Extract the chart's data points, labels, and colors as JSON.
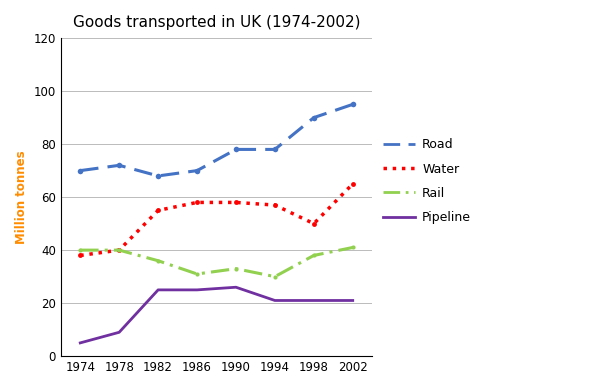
{
  "title": "Goods transported in UK (1974-2002)",
  "ylabel": "Million tonnes",
  "years": [
    1974,
    1978,
    1982,
    1986,
    1990,
    1994,
    1998,
    2002
  ],
  "road": [
    70,
    72,
    68,
    70,
    78,
    78,
    90,
    95
  ],
  "water": [
    38,
    40,
    55,
    58,
    58,
    57,
    50,
    65
  ],
  "rail": [
    40,
    40,
    36,
    31,
    33,
    30,
    38,
    41
  ],
  "pipeline": [
    5,
    9,
    25,
    25,
    26,
    21,
    21,
    21
  ],
  "road_color": "#4472C4",
  "water_color": "#FF0000",
  "rail_color": "#92D050",
  "pipeline_color": "#7030A0",
  "ylim": [
    0,
    120
  ],
  "yticks": [
    0,
    20,
    40,
    60,
    80,
    100,
    120
  ],
  "title_fontsize": 11,
  "axis_label_color": "#FF8C00",
  "legend_labels": [
    "Road",
    "Water",
    "Rail",
    "Pipeline"
  ],
  "background_color": "#FFFFFF"
}
